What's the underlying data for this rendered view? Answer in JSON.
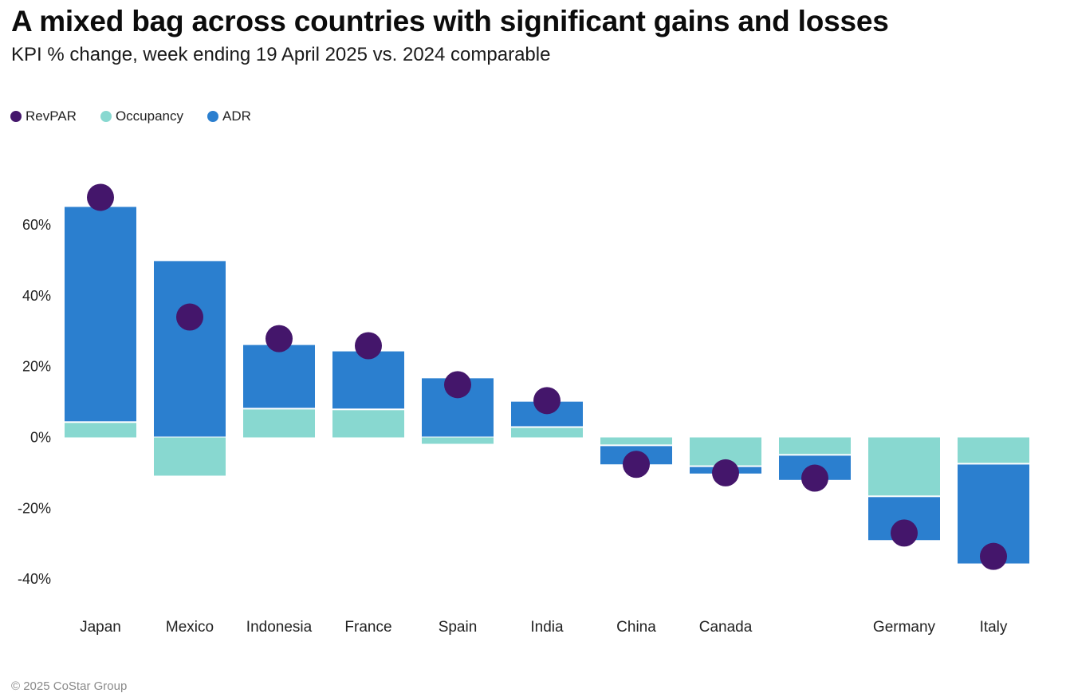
{
  "header": {
    "title": "A mixed bag across countries with significant gains and losses",
    "subtitle": "KPI % change, week ending 19 April 2025 vs. 2024 comparable"
  },
  "footer": {
    "credit": "© 2025 CoStar Group"
  },
  "legend": [
    {
      "name": "RevPAR",
      "color": "#44166b"
    },
    {
      "name": "Occupancy",
      "color": "#88d8d0"
    },
    {
      "name": "ADR",
      "color": "#2b7fcf"
    }
  ],
  "chart_data": {
    "type": "bar",
    "subtype": "stacked bar with dot overlay",
    "title": "A mixed bag across countries with significant gains and losses",
    "subtitle": "KPI % change, week ending 19 April 2025 vs. 2024 comparable",
    "xlabel": "",
    "ylabel": "",
    "ylim": [
      -45,
      70
    ],
    "yticks": [
      60,
      40,
      20,
      0,
      -20,
      -40
    ],
    "ytick_labels": [
      "60%",
      "40%",
      "20%",
      "0%",
      "-20%",
      "-40%"
    ],
    "grid": false,
    "legend_position": "top-left",
    "categories": [
      "Japan",
      "Mexico",
      "Indonesia",
      "France",
      "Spain",
      "India",
      "China",
      "Canada",
      "",
      "Germany",
      "Italy"
    ],
    "series": [
      {
        "name": "Occupancy",
        "type": "bar",
        "color": "#88d8d0",
        "values": [
          4.1,
          -10.8,
          7.9,
          7.7,
          -1.8,
          2.7,
          -2.0,
          -7.9,
          -4.7,
          -16.4,
          -7.2
        ]
      },
      {
        "name": "ADR",
        "type": "bar",
        "color": "#2b7fcf",
        "values": [
          61.0,
          49.8,
          18.2,
          16.6,
          16.7,
          7.4,
          -5.6,
          -2.3,
          -7.3,
          -12.6,
          -28.4
        ]
      },
      {
        "name": "RevPAR",
        "type": "dot",
        "color": "#44166b",
        "values": [
          67.8,
          34.0,
          27.9,
          25.9,
          14.9,
          10.4,
          -7.6,
          -10.0,
          -11.5,
          -27.0,
          -33.6
        ]
      }
    ]
  }
}
